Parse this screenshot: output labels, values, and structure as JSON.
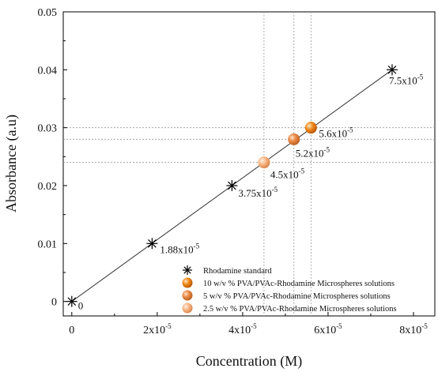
{
  "chart_data": {
    "type": "scatter",
    "title": "",
    "xlabel": "Concentration (M)",
    "ylabel": "Absorbance (a.u)",
    "xlim": [
      -2e-06,
      8.5e-05
    ],
    "ylim": [
      -0.0025,
      0.05
    ],
    "x_ticks": [
      {
        "value": 0,
        "mantissa": "0",
        "exp": ""
      },
      {
        "value": 2e-05,
        "mantissa": "2x10",
        "exp": "-5"
      },
      {
        "value": 4e-05,
        "mantissa": "4x10",
        "exp": "-5"
      },
      {
        "value": 6e-05,
        "mantissa": "6x10",
        "exp": "-5"
      },
      {
        "value": 8e-05,
        "mantissa": "8x10",
        "exp": "-5"
      }
    ],
    "y_ticks": [
      "0",
      "0.01",
      "0.02",
      "0.03",
      "0.04",
      "0.05"
    ],
    "y_tick_values": [
      0,
      0.01,
      0.02,
      0.03,
      0.04,
      0.05
    ],
    "fit_line": {
      "x": [
        0,
        7.5e-05
      ],
      "y": [
        0,
        0.04
      ]
    },
    "reference_lines": {
      "vertical": [
        4.5e-05,
        5.2e-05,
        5.6e-05
      ],
      "horizontal": [
        0.024,
        0.028,
        0.03
      ]
    },
    "series": [
      {
        "name": "Rhodamine standard",
        "marker": "asterisk",
        "color": "#000000",
        "points": [
          {
            "x": 0,
            "y": 0,
            "mantissa": "0",
            "exp": ""
          },
          {
            "x": 1.88e-05,
            "y": 0.01,
            "mantissa": "1.88x10",
            "exp": "-5"
          },
          {
            "x": 3.75e-05,
            "y": 0.02,
            "mantissa": "3.75x10",
            "exp": "-5"
          },
          {
            "x": 7.5e-05,
            "y": 0.04,
            "mantissa": "7.5x10",
            "exp": "-5"
          }
        ]
      },
      {
        "name": "10 w/v % PVA/PVAc-Rhodamine Microspheres solutions",
        "marker": "sphere",
        "color": "#ee7a10",
        "points": [
          {
            "x": 5.6e-05,
            "y": 0.03,
            "mantissa": "5.6x10",
            "exp": "-5"
          }
        ]
      },
      {
        "name": "5 w/v % PVA/PVAc-Rhodamine Microspheres solutions",
        "marker": "sphere",
        "color": "#e8833a",
        "points": [
          {
            "x": 5.2e-05,
            "y": 0.028,
            "mantissa": "5.2x10",
            "exp": "-5"
          }
        ]
      },
      {
        "name": "2.5 w/v % PVA/PVAc-Rhodamine Microspheres solutions",
        "marker": "sphere",
        "color": "#f4aa72",
        "points": [
          {
            "x": 4.5e-05,
            "y": 0.024,
            "mantissa": "4.5x10",
            "exp": "-5"
          }
        ]
      }
    ],
    "legend_position": "bottom-right",
    "grid": false
  }
}
